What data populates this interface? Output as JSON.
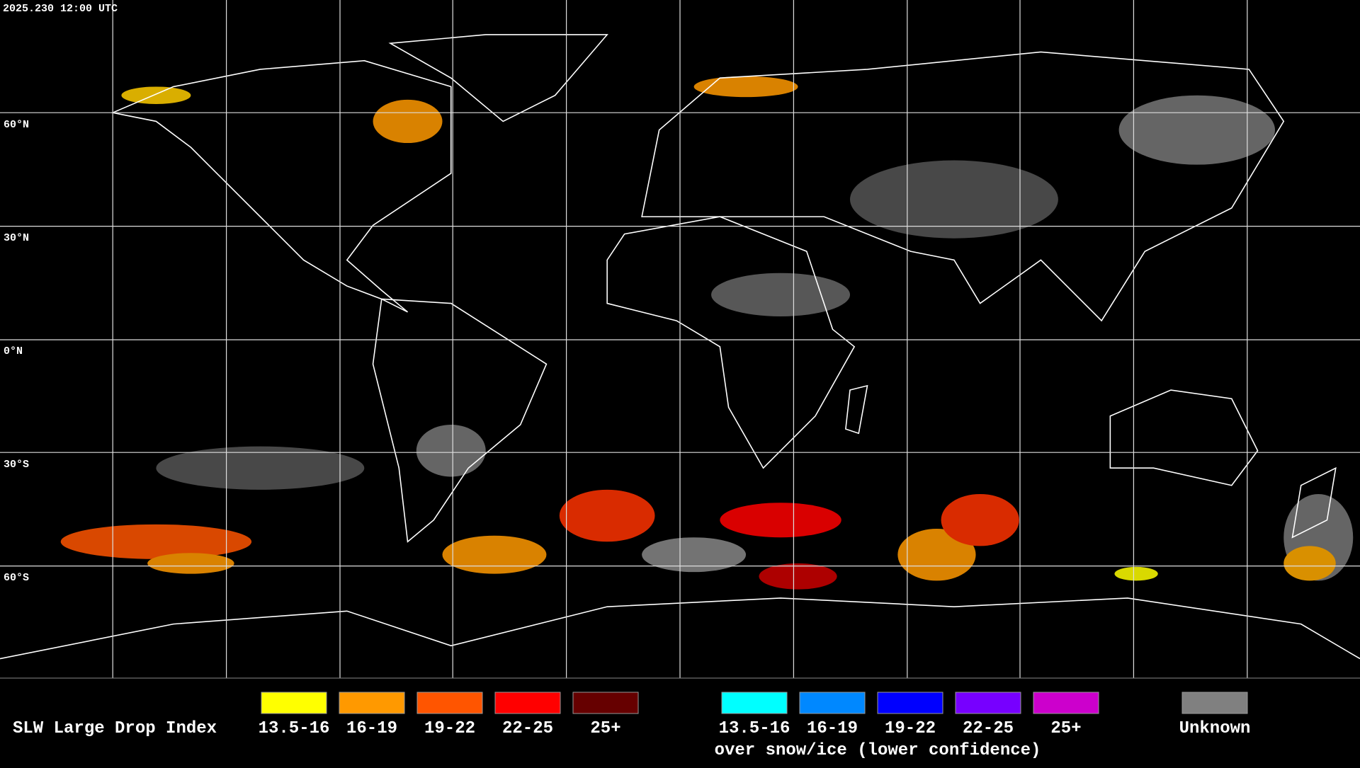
{
  "header": {
    "timestamp": "2025.230 12:00 UTC"
  },
  "latitude_labels": [
    "60°N",
    "30°N",
    "0°N",
    "30°S",
    "60°S"
  ],
  "legend": {
    "title": "SLW Large Drop Index",
    "liquid": [
      {
        "label": "13.5-16",
        "color": "#ffff00"
      },
      {
        "label": "16-19",
        "color": "#ff9900"
      },
      {
        "label": "19-22",
        "color": "#ff5500"
      },
      {
        "label": "22-25",
        "color": "#ff0000"
      },
      {
        "label": "25+",
        "color": "#660000"
      }
    ],
    "snow_ice": [
      {
        "label": "13.5-16",
        "color": "#00ffff"
      },
      {
        "label": "16-19",
        "color": "#0088ff"
      },
      {
        "label": "19-22",
        "color": "#0000ff"
      },
      {
        "label": "22-25",
        "color": "#7700ff"
      },
      {
        "label": "25+",
        "color": "#cc00cc"
      }
    ],
    "snow_ice_caption": "over snow/ice (lower confidence)",
    "unknown": {
      "label": "Unknown",
      "color": "#808080"
    }
  }
}
